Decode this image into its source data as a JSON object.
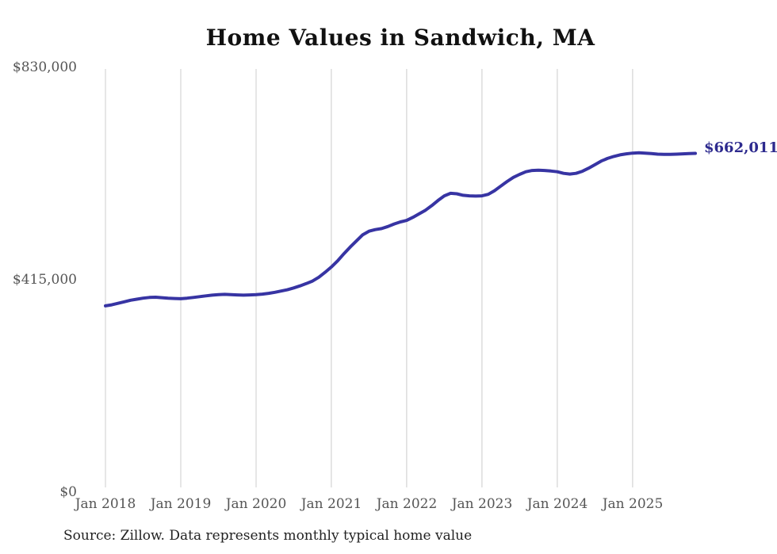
{
  "title": "Home Values in Sandwich, MA",
  "source_note": "Source: Zillow. Data represents monthly typical home value",
  "end_label": "$662,011",
  "colors": {
    "line": "#3734a3",
    "end_label": "#2d2a8e",
    "gridline": "#cccccc",
    "tick_text": "#555555",
    "title_text": "#111111"
  },
  "chart_data": {
    "type": "line",
    "title": "Home Values in Sandwich, MA",
    "series_name": "Monthly typical home value",
    "xlabel": "",
    "ylabel": "",
    "ylim": [
      0,
      830000
    ],
    "grid": "vertical-only",
    "legend": "none",
    "y_tick_labels": [
      "$830,000",
      "$415,000",
      "$0"
    ],
    "y_tick_values": [
      830000,
      415000,
      0
    ],
    "x_tick_labels": [
      "Jan 2018",
      "Jan 2019",
      "Jan 2020",
      "Jan 2021",
      "Jan 2022",
      "Jan 2023",
      "Jan 2024",
      "Jan 2025"
    ],
    "x_tick_month_indices": [
      0,
      12,
      24,
      36,
      48,
      60,
      72,
      84
    ],
    "end_value": 662011,
    "end_value_label": "$662,011",
    "x": [
      "2018-01",
      "2018-02",
      "2018-03",
      "2018-04",
      "2018-05",
      "2018-06",
      "2018-07",
      "2018-08",
      "2018-09",
      "2018-10",
      "2018-11",
      "2018-12",
      "2019-01",
      "2019-02",
      "2019-03",
      "2019-04",
      "2019-05",
      "2019-06",
      "2019-07",
      "2019-08",
      "2019-09",
      "2019-10",
      "2019-11",
      "2019-12",
      "2020-01",
      "2020-02",
      "2020-03",
      "2020-04",
      "2020-05",
      "2020-06",
      "2020-07",
      "2020-08",
      "2020-09",
      "2020-10",
      "2020-11",
      "2020-12",
      "2021-01",
      "2021-02",
      "2021-03",
      "2021-04",
      "2021-05",
      "2021-06",
      "2021-07",
      "2021-08",
      "2021-09",
      "2021-10",
      "2021-11",
      "2021-12",
      "2022-01",
      "2022-02",
      "2022-03",
      "2022-04",
      "2022-05",
      "2022-06",
      "2022-07",
      "2022-08",
      "2022-09",
      "2022-10",
      "2022-11",
      "2022-12",
      "2023-01",
      "2023-02",
      "2023-03",
      "2023-04",
      "2023-05",
      "2023-06",
      "2023-07",
      "2023-08",
      "2023-09",
      "2023-10",
      "2023-11",
      "2023-12",
      "2024-01",
      "2024-02",
      "2024-03",
      "2024-04",
      "2024-05",
      "2024-06",
      "2024-07",
      "2024-08",
      "2024-09",
      "2024-10",
      "2024-11",
      "2024-12",
      "2025-01",
      "2025-02",
      "2025-03",
      "2025-04",
      "2025-05",
      "2025-06",
      "2025-07",
      "2025-08",
      "2025-09",
      "2025-10",
      "2025-11"
    ],
    "values": [
      364000,
      366000,
      369000,
      372000,
      375000,
      377000,
      379000,
      380500,
      381000,
      380000,
      379000,
      378500,
      378000,
      379000,
      380500,
      382000,
      383500,
      385000,
      386000,
      386500,
      386000,
      385500,
      385000,
      385500,
      386000,
      387000,
      388500,
      390500,
      393000,
      395500,
      399000,
      403000,
      407500,
      412500,
      420000,
      429500,
      440000,
      452000,
      466000,
      479000,
      491000,
      503000,
      510000,
      513000,
      515000,
      519000,
      524000,
      528000,
      531000,
      537000,
      544000,
      551000,
      560000,
      570000,
      579000,
      584000,
      583000,
      580000,
      579000,
      578500,
      579000,
      582000,
      589000,
      598000,
      607000,
      615000,
      621000,
      626000,
      628500,
      629000,
      628500,
      627500,
      626000,
      623000,
      621500,
      623000,
      627000,
      633000,
      640000,
      647000,
      652000,
      656000,
      659000,
      661000,
      662500,
      663000,
      662500,
      661500,
      660500,
      660000,
      660000,
      660500,
      661000,
      661500,
      662011
    ]
  }
}
